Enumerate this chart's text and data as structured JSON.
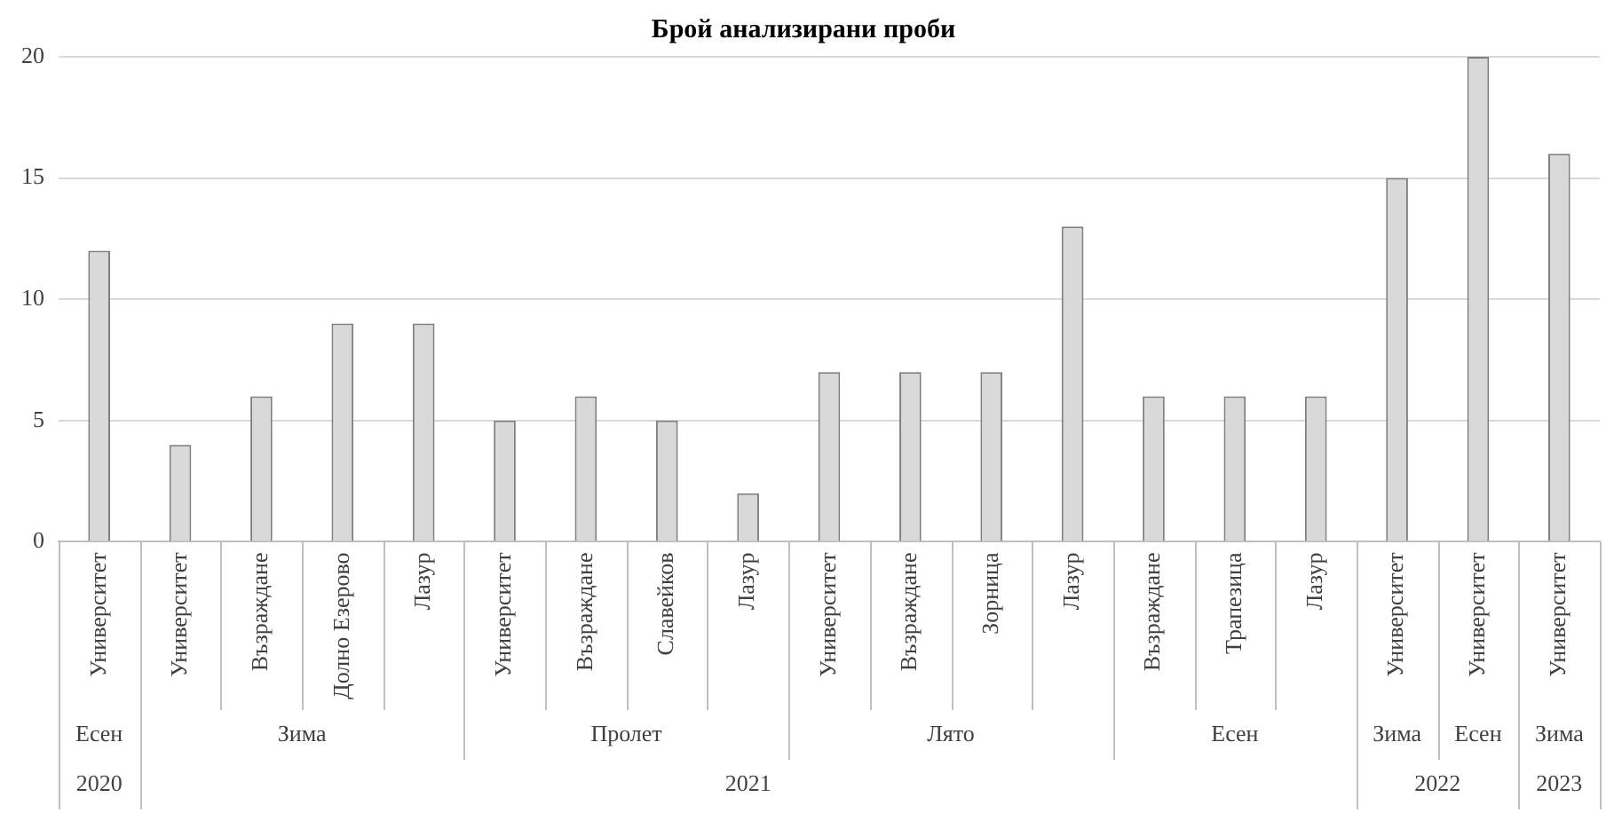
{
  "chart_data": {
    "type": "bar",
    "title": "Брой анализирани проби",
    "categories": [
      "Университет",
      "Университет",
      "Възраждане",
      "Долно Езерово",
      "Лазур",
      "Университет",
      "Възраждане",
      "Славейков",
      "Лазур",
      "Университет",
      "Възраждане",
      "Зорница",
      "Лазур",
      "Възраждане",
      "Трапезица",
      "Лазур",
      "Университет",
      "Университет",
      "Университет"
    ],
    "values": [
      12,
      4,
      6,
      9,
      9,
      5,
      6,
      5,
      2,
      7,
      7,
      7,
      13,
      6,
      6,
      6,
      15,
      20,
      16
    ],
    "color": "#d9d9d9",
    "ylim": [
      0,
      20
    ],
    "yticks": [
      0,
      5,
      10,
      15,
      20
    ],
    "grid": "y",
    "legend": false,
    "annotations": [
      "Есен",
      "Зима",
      "Пролет",
      "Лято",
      "Есен",
      "Зима",
      "Есен",
      "Зима",
      "2020",
      "2021",
      "2022",
      "2023"
    ]
  }
}
